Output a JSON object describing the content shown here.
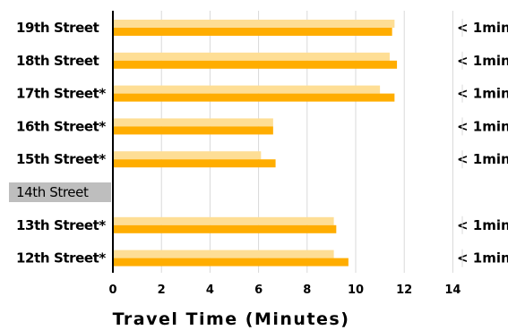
{
  "chart_data": {
    "type": "bar",
    "orientation": "horizontal",
    "categories": [
      "19th Street",
      "18th Street",
      "17th Street*",
      "16th Street*",
      "15th Street*",
      "14th Street",
      "13th Street*",
      "12th Street*"
    ],
    "highlighted_category": "14th Street",
    "series": [
      {
        "values": [
          11.6,
          11.4,
          11.0,
          6.6,
          6.1,
          null,
          9.1,
          9.1
        ]
      },
      {
        "values": [
          11.5,
          11.7,
          11.6,
          6.6,
          6.7,
          null,
          9.2,
          9.7
        ]
      }
    ],
    "annotations": [
      "< 1min",
      "< 1min",
      "< 1min",
      "< 1min",
      "< 1min",
      "",
      "< 1min",
      "< 1min"
    ],
    "xticks": [
      "0",
      "2",
      "4",
      "6",
      "8",
      "10",
      "12",
      "14"
    ],
    "xlim": [
      0,
      14
    ],
    "xlabel": "Travel Time (Minutes)",
    "grid": "vertical",
    "colors": {
      "series_light": "#FEDE95",
      "series_dark": "#FFAD00",
      "highlight_bg": "#BEBEBE",
      "grid": "#D9D9D9",
      "axis": "#000000"
    }
  }
}
